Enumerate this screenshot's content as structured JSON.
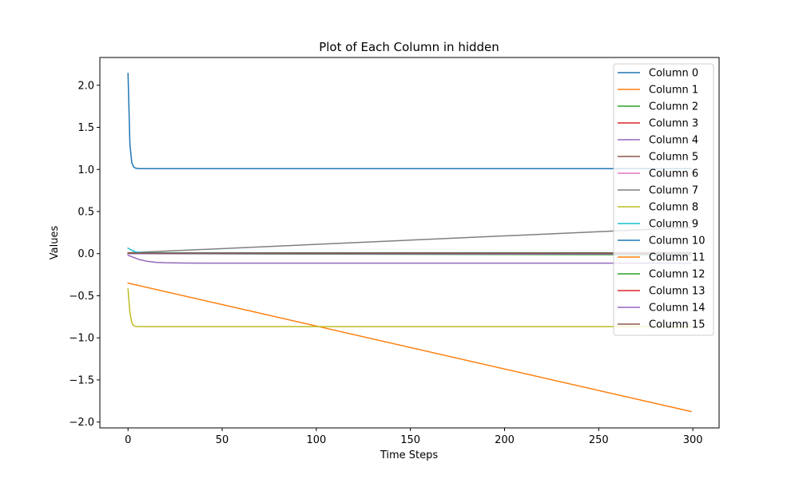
{
  "chart_data": {
    "type": "line",
    "title": "Plot of Each Column in hidden",
    "xlabel": "Time Steps",
    "ylabel": "Values",
    "xlim": [
      -14.95,
      313.95
    ],
    "ylim": [
      -2.07,
      2.33
    ],
    "xticks": [
      0,
      50,
      100,
      150,
      200,
      250,
      300
    ],
    "xtick_labels": [
      "0",
      "50",
      "100",
      "150",
      "200",
      "250",
      "300"
    ],
    "yticks": [
      -2.0,
      -1.5,
      -1.0,
      -0.5,
      0.0,
      0.5,
      1.0,
      1.5,
      2.0
    ],
    "ytick_labels": [
      "−2.0",
      "−1.5",
      "−1.0",
      "−0.5",
      "0.0",
      "0.5",
      "1.0",
      "1.5",
      "2.0"
    ],
    "grid": false,
    "legend_position": "upper-right",
    "series": [
      {
        "name": "Column 0",
        "color": "#1f77b4",
        "x": [
          0,
          1,
          2,
          3,
          4,
          6,
          10,
          299
        ],
        "y": [
          2.14,
          1.3,
          1.08,
          1.03,
          1.015,
          1.01,
          1.01,
          1.01
        ]
      },
      {
        "name": "Column 1",
        "color": "#ff7f0e",
        "x": [
          0,
          299
        ],
        "y": [
          -0.35,
          -1.875
        ]
      },
      {
        "name": "Column 2",
        "color": "#2ca02c",
        "x": [
          0,
          100,
          200,
          299
        ],
        "y": [
          0.0,
          -0.005,
          -0.01,
          -0.015
        ]
      },
      {
        "name": "Column 3",
        "color": "#d62728",
        "x": [
          0,
          299
        ],
        "y": [
          0.0,
          0.01
        ]
      },
      {
        "name": "Column 4",
        "color": "#9467bd",
        "x": [
          0,
          3,
          6,
          10,
          15,
          20,
          30,
          50,
          299
        ],
        "y": [
          -0.02,
          -0.045,
          -0.07,
          -0.09,
          -0.103,
          -0.108,
          -0.112,
          -0.113,
          -0.113
        ]
      },
      {
        "name": "Column 5",
        "color": "#8c564b",
        "x": [
          0,
          299
        ],
        "y": [
          0.0,
          0.005
        ]
      },
      {
        "name": "Column 6",
        "color": "#e377c2",
        "x": [
          0,
          299
        ],
        "y": [
          0.0,
          0.005
        ]
      },
      {
        "name": "Column 7",
        "color": "#7f7f7f",
        "x": [
          0,
          299
        ],
        "y": [
          0.01,
          0.31
        ]
      },
      {
        "name": "Column 8",
        "color": "#bcbd22",
        "x": [
          0,
          1,
          2,
          3,
          4,
          6,
          299
        ],
        "y": [
          -0.42,
          -0.7,
          -0.82,
          -0.855,
          -0.865,
          -0.867,
          -0.867
        ]
      },
      {
        "name": "Column 9",
        "color": "#17becf",
        "x": [
          0,
          2,
          4,
          8,
          299
        ],
        "y": [
          0.065,
          0.04,
          0.02,
          0.01,
          0.01
        ]
      },
      {
        "name": "Column 10",
        "color": "#1f77b4",
        "x": [
          0,
          299
        ],
        "y": [
          0.0,
          0.01
        ]
      },
      {
        "name": "Column 11",
        "color": "#ff7f0e",
        "x": [
          0,
          299
        ],
        "y": [
          0.0,
          0.0
        ]
      },
      {
        "name": "Column 12",
        "color": "#2ca02c",
        "x": [
          0,
          299
        ],
        "y": [
          0.005,
          0.01
        ]
      },
      {
        "name": "Column 13",
        "color": "#d62728",
        "x": [
          0,
          299
        ],
        "y": [
          0.005,
          0.005
        ]
      },
      {
        "name": "Column 14",
        "color": "#9467bd",
        "x": [
          0,
          299
        ],
        "y": [
          0.0,
          -0.005
        ]
      },
      {
        "name": "Column 15",
        "color": "#8c564b",
        "x": [
          0,
          299
        ],
        "y": [
          0.005,
          0.005
        ]
      }
    ]
  }
}
